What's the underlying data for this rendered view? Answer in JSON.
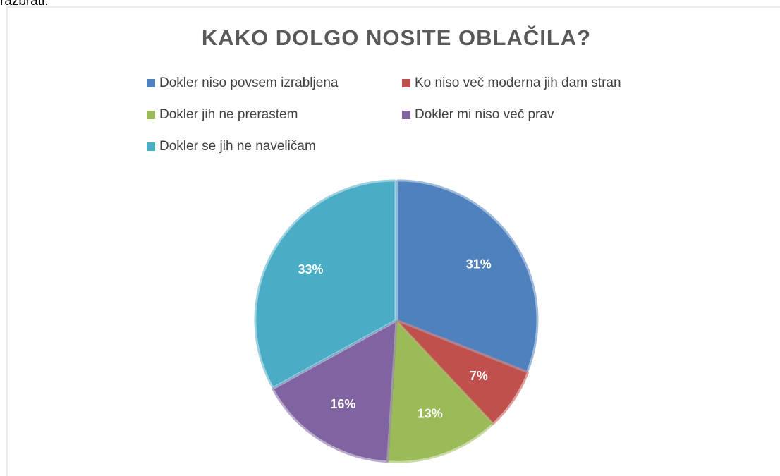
{
  "page_text": "razbrati.",
  "chart_data": {
    "type": "pie",
    "title": "KAKO DOLGO NOSITE OBLAČILA?",
    "categories": [
      "Dokler niso povsem izrabljena",
      "Ko niso več moderna jih dam stran",
      "Dokler jih ne prerastem",
      "Dokler mi niso več prav",
      "Dokler se jih ne naveličam"
    ],
    "values": [
      31,
      7,
      13,
      16,
      33
    ],
    "value_labels": [
      "31%",
      "7%",
      "13%",
      "16%",
      "33%"
    ],
    "colors": [
      "#4f81bd",
      "#c0504d",
      "#9bbb59",
      "#8064a2",
      "#4bacc6"
    ],
    "legend": "top"
  }
}
